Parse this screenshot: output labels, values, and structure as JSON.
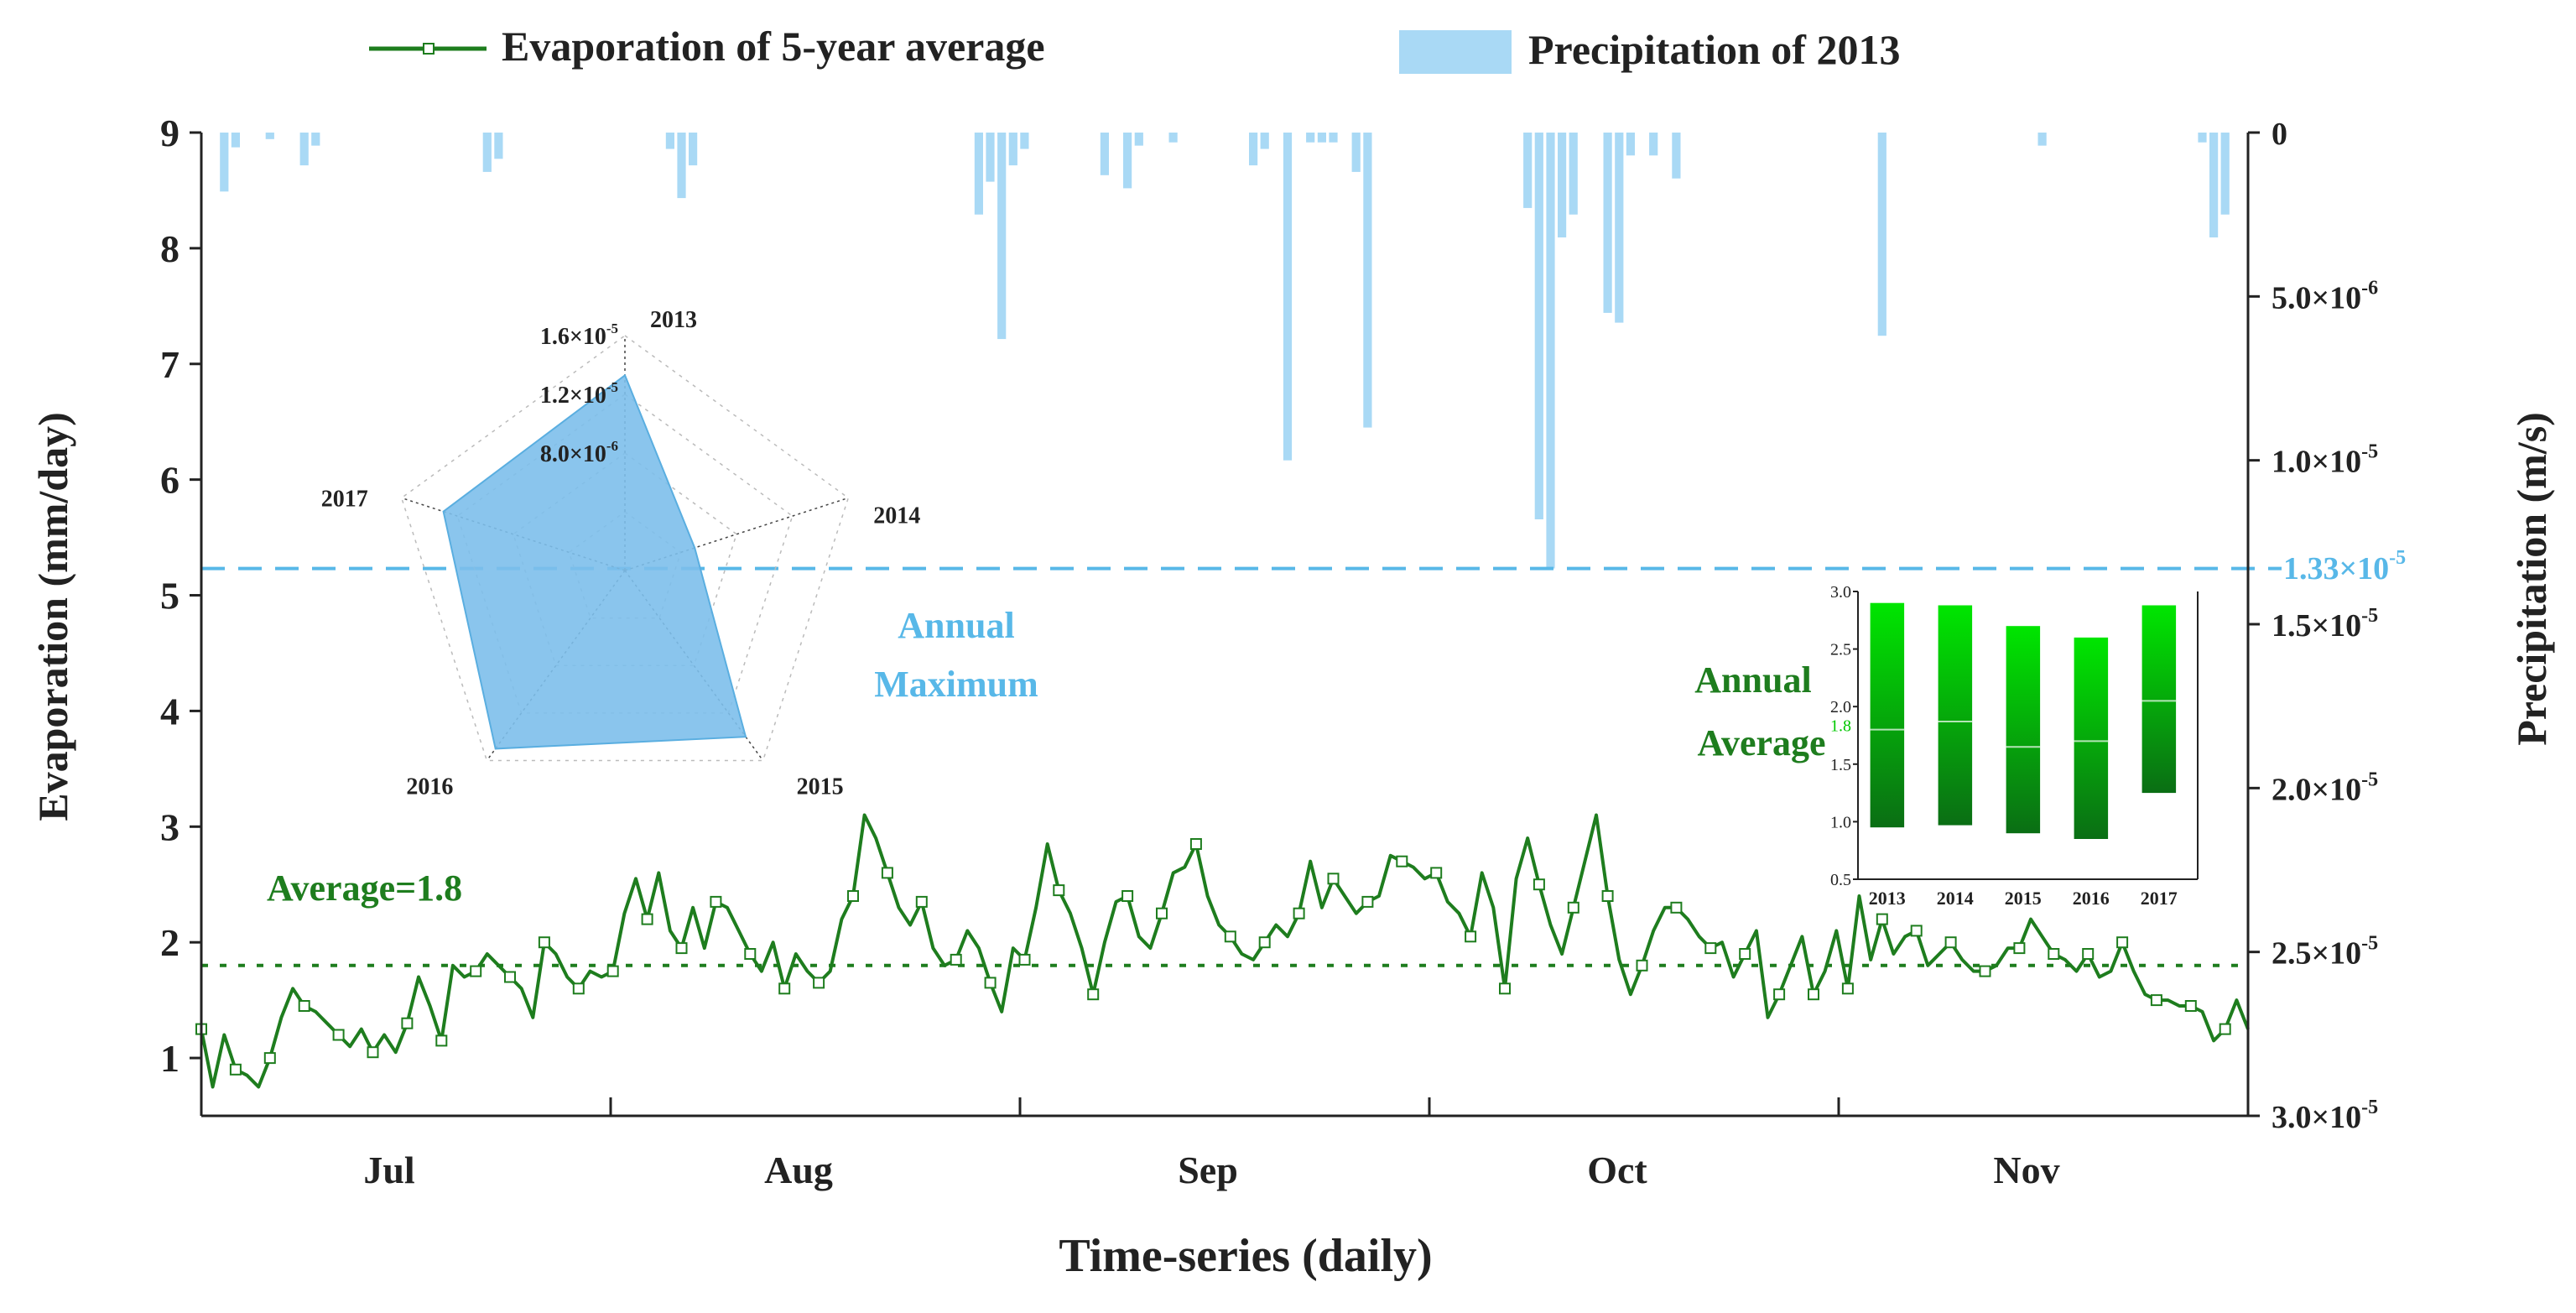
{
  "chart_data": {
    "type": "line+bar",
    "xlabel": "Time-series (daily)",
    "ylabel_left": "Evaporation (mm/day)",
    "ylabel_right": "Precipitation (m/s)",
    "ylim_left": [
      0.5,
      9
    ],
    "yticks_left": [
      "1",
      "2",
      "3",
      "4",
      "5",
      "6",
      "7",
      "8",
      "9"
    ],
    "yticks_left_values": [
      1,
      2,
      3,
      4,
      5,
      6,
      7,
      8,
      9
    ],
    "ylim_right_inverted": [
      0,
      3e-05
    ],
    "yticks_right": [
      {
        "value": 0,
        "mant": "0",
        "exp": ""
      },
      {
        "value": 5e-06,
        "mant": "5.0×10",
        "exp": "-6"
      },
      {
        "value": 1e-05,
        "mant": "1.0×10",
        "exp": "-5"
      },
      {
        "value": 1.5e-05,
        "mant": "1.5×10",
        "exp": "-5"
      },
      {
        "value": 2e-05,
        "mant": "2.0×10",
        "exp": "-5"
      },
      {
        "value": 2.5e-05,
        "mant": "2.5×10",
        "exp": "-5"
      },
      {
        "value": 3e-05,
        "mant": "3.0×10",
        "exp": "-5"
      }
    ],
    "months": [
      "Jul",
      "Aug",
      "Sep",
      "Oct",
      "Nov"
    ],
    "legend": {
      "line_label": "Evaporation of 5-year average",
      "bar_label": "Precipitation of 2013"
    },
    "colors": {
      "evaporation": "#1e7d1e",
      "precipitation": "#a9d9f5",
      "max_line": "#58b8e8",
      "avg_line": "#1e7d1e"
    },
    "evaporation": {
      "name": "Evaporation of 5-year average",
      "day_start": 1,
      "values": [
        1.25,
        0.75,
        1.2,
        0.9,
        0.85,
        0.75,
        1.0,
        1.35,
        1.6,
        1.45,
        1.4,
        1.3,
        1.2,
        1.1,
        1.25,
        1.05,
        1.2,
        1.05,
        1.3,
        1.7,
        1.45,
        1.15,
        1.8,
        1.7,
        1.75,
        1.9,
        1.8,
        1.7,
        1.6,
        1.35,
        2.0,
        1.9,
        1.7,
        1.6,
        1.75,
        1.7,
        1.75,
        2.25,
        2.55,
        2.2,
        2.6,
        2.1,
        1.95,
        2.3,
        1.95,
        2.35,
        2.3,
        2.1,
        1.9,
        1.75,
        2.0,
        1.6,
        1.9,
        1.75,
        1.65,
        1.75,
        2.2,
        2.4,
        3.1,
        2.9,
        2.6,
        2.3,
        2.15,
        2.35,
        1.95,
        1.8,
        1.85,
        2.1,
        1.95,
        1.65,
        1.4,
        1.95,
        1.85,
        2.3,
        2.85,
        2.45,
        2.25,
        1.95,
        1.55,
        2.0,
        2.35,
        2.4,
        2.05,
        1.95,
        2.25,
        2.6,
        2.65,
        2.85,
        2.4,
        2.15,
        2.05,
        1.9,
        1.85,
        2.0,
        2.15,
        2.05,
        2.25,
        2.7,
        2.3,
        2.55,
        2.4,
        2.25,
        2.35,
        2.4,
        2.75,
        2.7,
        2.65,
        2.55,
        2.6,
        2.35,
        2.25,
        2.05,
        2.6,
        2.3,
        1.6,
        2.55,
        2.9,
        2.5,
        2.15,
        1.9,
        2.3,
        2.7,
        3.1,
        2.4,
        1.85,
        1.55,
        1.8,
        2.1,
        2.3,
        2.3,
        2.2,
        2.05,
        1.95,
        2.0,
        1.7,
        1.9,
        2.1,
        1.35,
        1.55,
        1.8,
        2.05,
        1.55,
        1.75,
        2.1,
        1.6,
        2.4,
        1.85,
        2.2,
        1.9,
        2.05,
        2.1,
        1.8,
        1.9,
        2.0,
        1.85,
        1.75,
        1.75,
        1.8,
        1.95,
        1.95,
        2.2,
        2.05,
        1.9,
        1.85,
        1.75,
        1.9,
        1.7,
        1.75,
        2.0,
        1.75,
        1.55,
        1.5,
        1.5,
        1.45,
        1.45,
        1.4,
        1.15,
        1.25,
        1.5,
        1.25
      ],
      "average": 1.8
    },
    "precipitation": {
      "name": "Precipitation of 2013",
      "unit": "m/s",
      "bars": [
        {
          "day": 3,
          "value": 1.8e-06
        },
        {
          "day": 4,
          "value": 4.5e-07
        },
        {
          "day": 7,
          "value": 2e-07
        },
        {
          "day": 10,
          "value": 1e-06
        },
        {
          "day": 11,
          "value": 4e-07
        },
        {
          "day": 26,
          "value": 1.2e-06
        },
        {
          "day": 27,
          "value": 8e-07
        },
        {
          "day": 42,
          "value": 5e-07
        },
        {
          "day": 43,
          "value": 2e-06
        },
        {
          "day": 44,
          "value": 1e-06
        },
        {
          "day": 69,
          "value": 2.5e-06
        },
        {
          "day": 70,
          "value": 1.5e-06
        },
        {
          "day": 71,
          "value": 6.3e-06
        },
        {
          "day": 72,
          "value": 1e-06
        },
        {
          "day": 73,
          "value": 5e-07
        },
        {
          "day": 80,
          "value": 1.3e-06
        },
        {
          "day": 82,
          "value": 1.7e-06
        },
        {
          "day": 83,
          "value": 4e-07
        },
        {
          "day": 86,
          "value": 3e-07
        },
        {
          "day": 93,
          "value": 1e-06
        },
        {
          "day": 94,
          "value": 5e-07
        },
        {
          "day": 96,
          "value": 1e-05
        },
        {
          "day": 98,
          "value": 3e-07
        },
        {
          "day": 99,
          "value": 3e-07
        },
        {
          "day": 100,
          "value": 3e-07
        },
        {
          "day": 102,
          "value": 1.2e-06
        },
        {
          "day": 103,
          "value": 9e-06
        },
        {
          "day": 117,
          "value": 2.3e-06
        },
        {
          "day": 118,
          "value": 1.18e-05
        },
        {
          "day": 119,
          "value": 1.33e-05
        },
        {
          "day": 120,
          "value": 3.2e-06
        },
        {
          "day": 121,
          "value": 2.5e-06
        },
        {
          "day": 124,
          "value": 5.5e-06
        },
        {
          "day": 125,
          "value": 5.8e-06
        },
        {
          "day": 126,
          "value": 7e-07
        },
        {
          "day": 128,
          "value": 7e-07
        },
        {
          "day": 130,
          "value": 1.4e-06
        },
        {
          "day": 148,
          "value": 6.2e-06
        },
        {
          "day": 162,
          "value": 4e-07
        },
        {
          "day": 176,
          "value": 3e-07
        },
        {
          "day": 177,
          "value": 3.2e-06
        },
        {
          "day": 178,
          "value": 2.5e-06
        }
      ]
    },
    "annual_max": {
      "value": 1.33e-05,
      "mant": "1.33×10",
      "exp": "-5",
      "label_line1": "Annual",
      "label_line2": "Maximum"
    },
    "average_label": "Average=1.8",
    "radar_inset": {
      "type": "radar",
      "axes": [
        "2013",
        "2014",
        "2015",
        "2016",
        "2017"
      ],
      "values": [
        1.33e-05,
        5e-06,
        1.4e-05,
        1.5e-05,
        1.3e-05
      ],
      "max": 1.6e-05,
      "ring_labels": [
        {
          "value": 1.6e-05,
          "mant": "1.6×10",
          "exp": "-5"
        },
        {
          "value": 1.2e-05,
          "mant": "1.2×10",
          "exp": "-5"
        },
        {
          "value": 8e-06,
          "mant": "8.0×10",
          "exp": "-6"
        }
      ]
    },
    "bar_inset": {
      "type": "floating_bar",
      "title_line1": "Annual",
      "title_line2": "Average",
      "categories": [
        "2013",
        "2014",
        "2015",
        "2016",
        "2017"
      ],
      "ranges": [
        [
          0.95,
          2.9
        ],
        [
          0.97,
          2.88
        ],
        [
          0.9,
          2.7
        ],
        [
          0.85,
          2.6
        ],
        [
          1.25,
          2.88
        ]
      ],
      "means": [
        1.8,
        1.87,
        1.65,
        1.7,
        2.05
      ],
      "ylim": [
        0.5,
        3.0
      ],
      "yticks": [
        "0.5",
        "1.0",
        "1.5",
        "2.0",
        "2.5",
        "3.0"
      ],
      "ytick_values": [
        0.5,
        1.0,
        1.5,
        2.0,
        2.5,
        3.0
      ],
      "mean_label": "1.8"
    }
  }
}
